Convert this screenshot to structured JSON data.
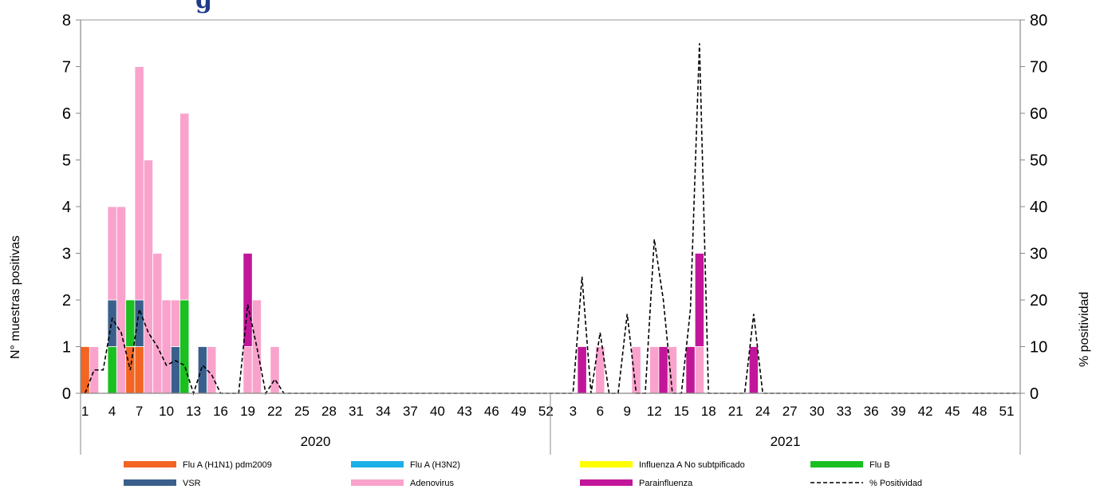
{
  "chart_data": {
    "type": "bar",
    "stacked": true,
    "title_fragment": "g",
    "ylabel_left": "N° muestras positivas",
    "ylabel_right": "% positividad",
    "ylim_left": [
      0,
      8
    ],
    "ylim_right": [
      0,
      80
    ],
    "yticks_left": [
      "0",
      "1",
      "2",
      "3",
      "4",
      "5",
      "6",
      "7",
      "8"
    ],
    "yticks_right": [
      "0",
      "10",
      "20",
      "30",
      "40",
      "50",
      "60",
      "70",
      "80"
    ],
    "years": [
      {
        "label": "2020",
        "weeks": 52
      },
      {
        "label": "2021",
        "weeks": 52
      }
    ],
    "xticks_2020": [
      "1",
      "4",
      "7",
      "10",
      "13",
      "16",
      "19",
      "22",
      "25",
      "28",
      "31",
      "34",
      "37",
      "40",
      "43",
      "46",
      "49",
      "52"
    ],
    "xticks_2021": [
      "3",
      "6",
      "9",
      "12",
      "15",
      "18",
      "21",
      "24",
      "27",
      "30",
      "33",
      "36",
      "39",
      "42",
      "45",
      "48",
      "51"
    ],
    "series": [
      {
        "name": "Flu A (H1N1) pdm2009",
        "color": "#f26522",
        "points": [
          [
            1,
            1
          ],
          [
            6,
            1
          ],
          [
            7,
            1
          ]
        ]
      },
      {
        "name": "Flu A (H3N2)",
        "color": "#1cb0e8",
        "points": []
      },
      {
        "name": "Influenza A No subtpificado",
        "color": "#ffff00",
        "points": []
      },
      {
        "name": "Flu B",
        "color": "#19c01f",
        "points": [
          [
            4,
            1
          ],
          [
            6,
            1
          ],
          [
            12,
            2
          ]
        ]
      },
      {
        "name": "VSR",
        "color": "#3b5f8c",
        "points": [
          [
            4,
            1
          ],
          [
            7,
            1
          ],
          [
            11,
            1
          ],
          [
            14,
            1
          ]
        ]
      },
      {
        "name": "Adenovirus",
        "color": "#f9a3cc",
        "points": [
          [
            2,
            1
          ],
          [
            4,
            2
          ],
          [
            5,
            4
          ],
          [
            7,
            5
          ],
          [
            8,
            5
          ],
          [
            9,
            3
          ],
          [
            10,
            2
          ],
          [
            11,
            1
          ],
          [
            12,
            4
          ],
          [
            15,
            1
          ],
          [
            19,
            1
          ],
          [
            20,
            2
          ],
          [
            22,
            1
          ],
          [
            58,
            1
          ],
          [
            62,
            1
          ],
          [
            64,
            1
          ],
          [
            66,
            1
          ],
          [
            69,
            1
          ]
        ]
      },
      {
        "name": "Parainfluenza",
        "color": "#c2169a",
        "points": [
          [
            19,
            2
          ],
          [
            56,
            1
          ],
          [
            65,
            1
          ],
          [
            68,
            1
          ],
          [
            69,
            2
          ],
          [
            75,
            1
          ]
        ]
      }
    ],
    "line": {
      "name": "% Positividad",
      "color": "#000000",
      "dash": true,
      "points": [
        [
          1,
          0
        ],
        [
          2,
          5
        ],
        [
          3,
          5
        ],
        [
          4,
          16
        ],
        [
          5,
          13
        ],
        [
          6,
          5
        ],
        [
          7,
          18
        ],
        [
          8,
          13
        ],
        [
          9,
          10
        ],
        [
          10,
          6
        ],
        [
          11,
          7
        ],
        [
          12,
          6
        ],
        [
          13,
          0
        ],
        [
          14,
          6
        ],
        [
          15,
          4
        ],
        [
          16,
          0
        ],
        [
          17,
          0
        ],
        [
          18,
          0
        ],
        [
          19,
          19
        ],
        [
          20,
          10
        ],
        [
          21,
          0
        ],
        [
          22,
          3
        ],
        [
          23,
          0
        ],
        [
          24,
          0
        ],
        [
          55,
          0
        ],
        [
          56,
          25
        ],
        [
          57,
          0
        ],
        [
          58,
          13
        ],
        [
          59,
          0
        ],
        [
          60,
          0
        ],
        [
          61,
          17
        ],
        [
          62,
          0
        ],
        [
          63,
          0
        ],
        [
          64,
          33
        ],
        [
          65,
          20
        ],
        [
          66,
          0
        ],
        [
          67,
          0
        ],
        [
          68,
          18
        ],
        [
          69,
          75
        ],
        [
          70,
          0
        ],
        [
          71,
          0
        ],
        [
          72,
          0
        ],
        [
          73,
          0
        ],
        [
          74,
          0
        ],
        [
          75,
          17
        ],
        [
          76,
          0
        ],
        [
          104,
          0
        ]
      ]
    },
    "legend": [
      "Flu A (H1N1) pdm2009",
      "Flu A (H3N2)",
      "Influenza A No subtpificado",
      "Flu B",
      "VSR",
      "Adenovirus",
      "Parainfluenza",
      "% Positividad"
    ],
    "legend_position": "bottom"
  }
}
